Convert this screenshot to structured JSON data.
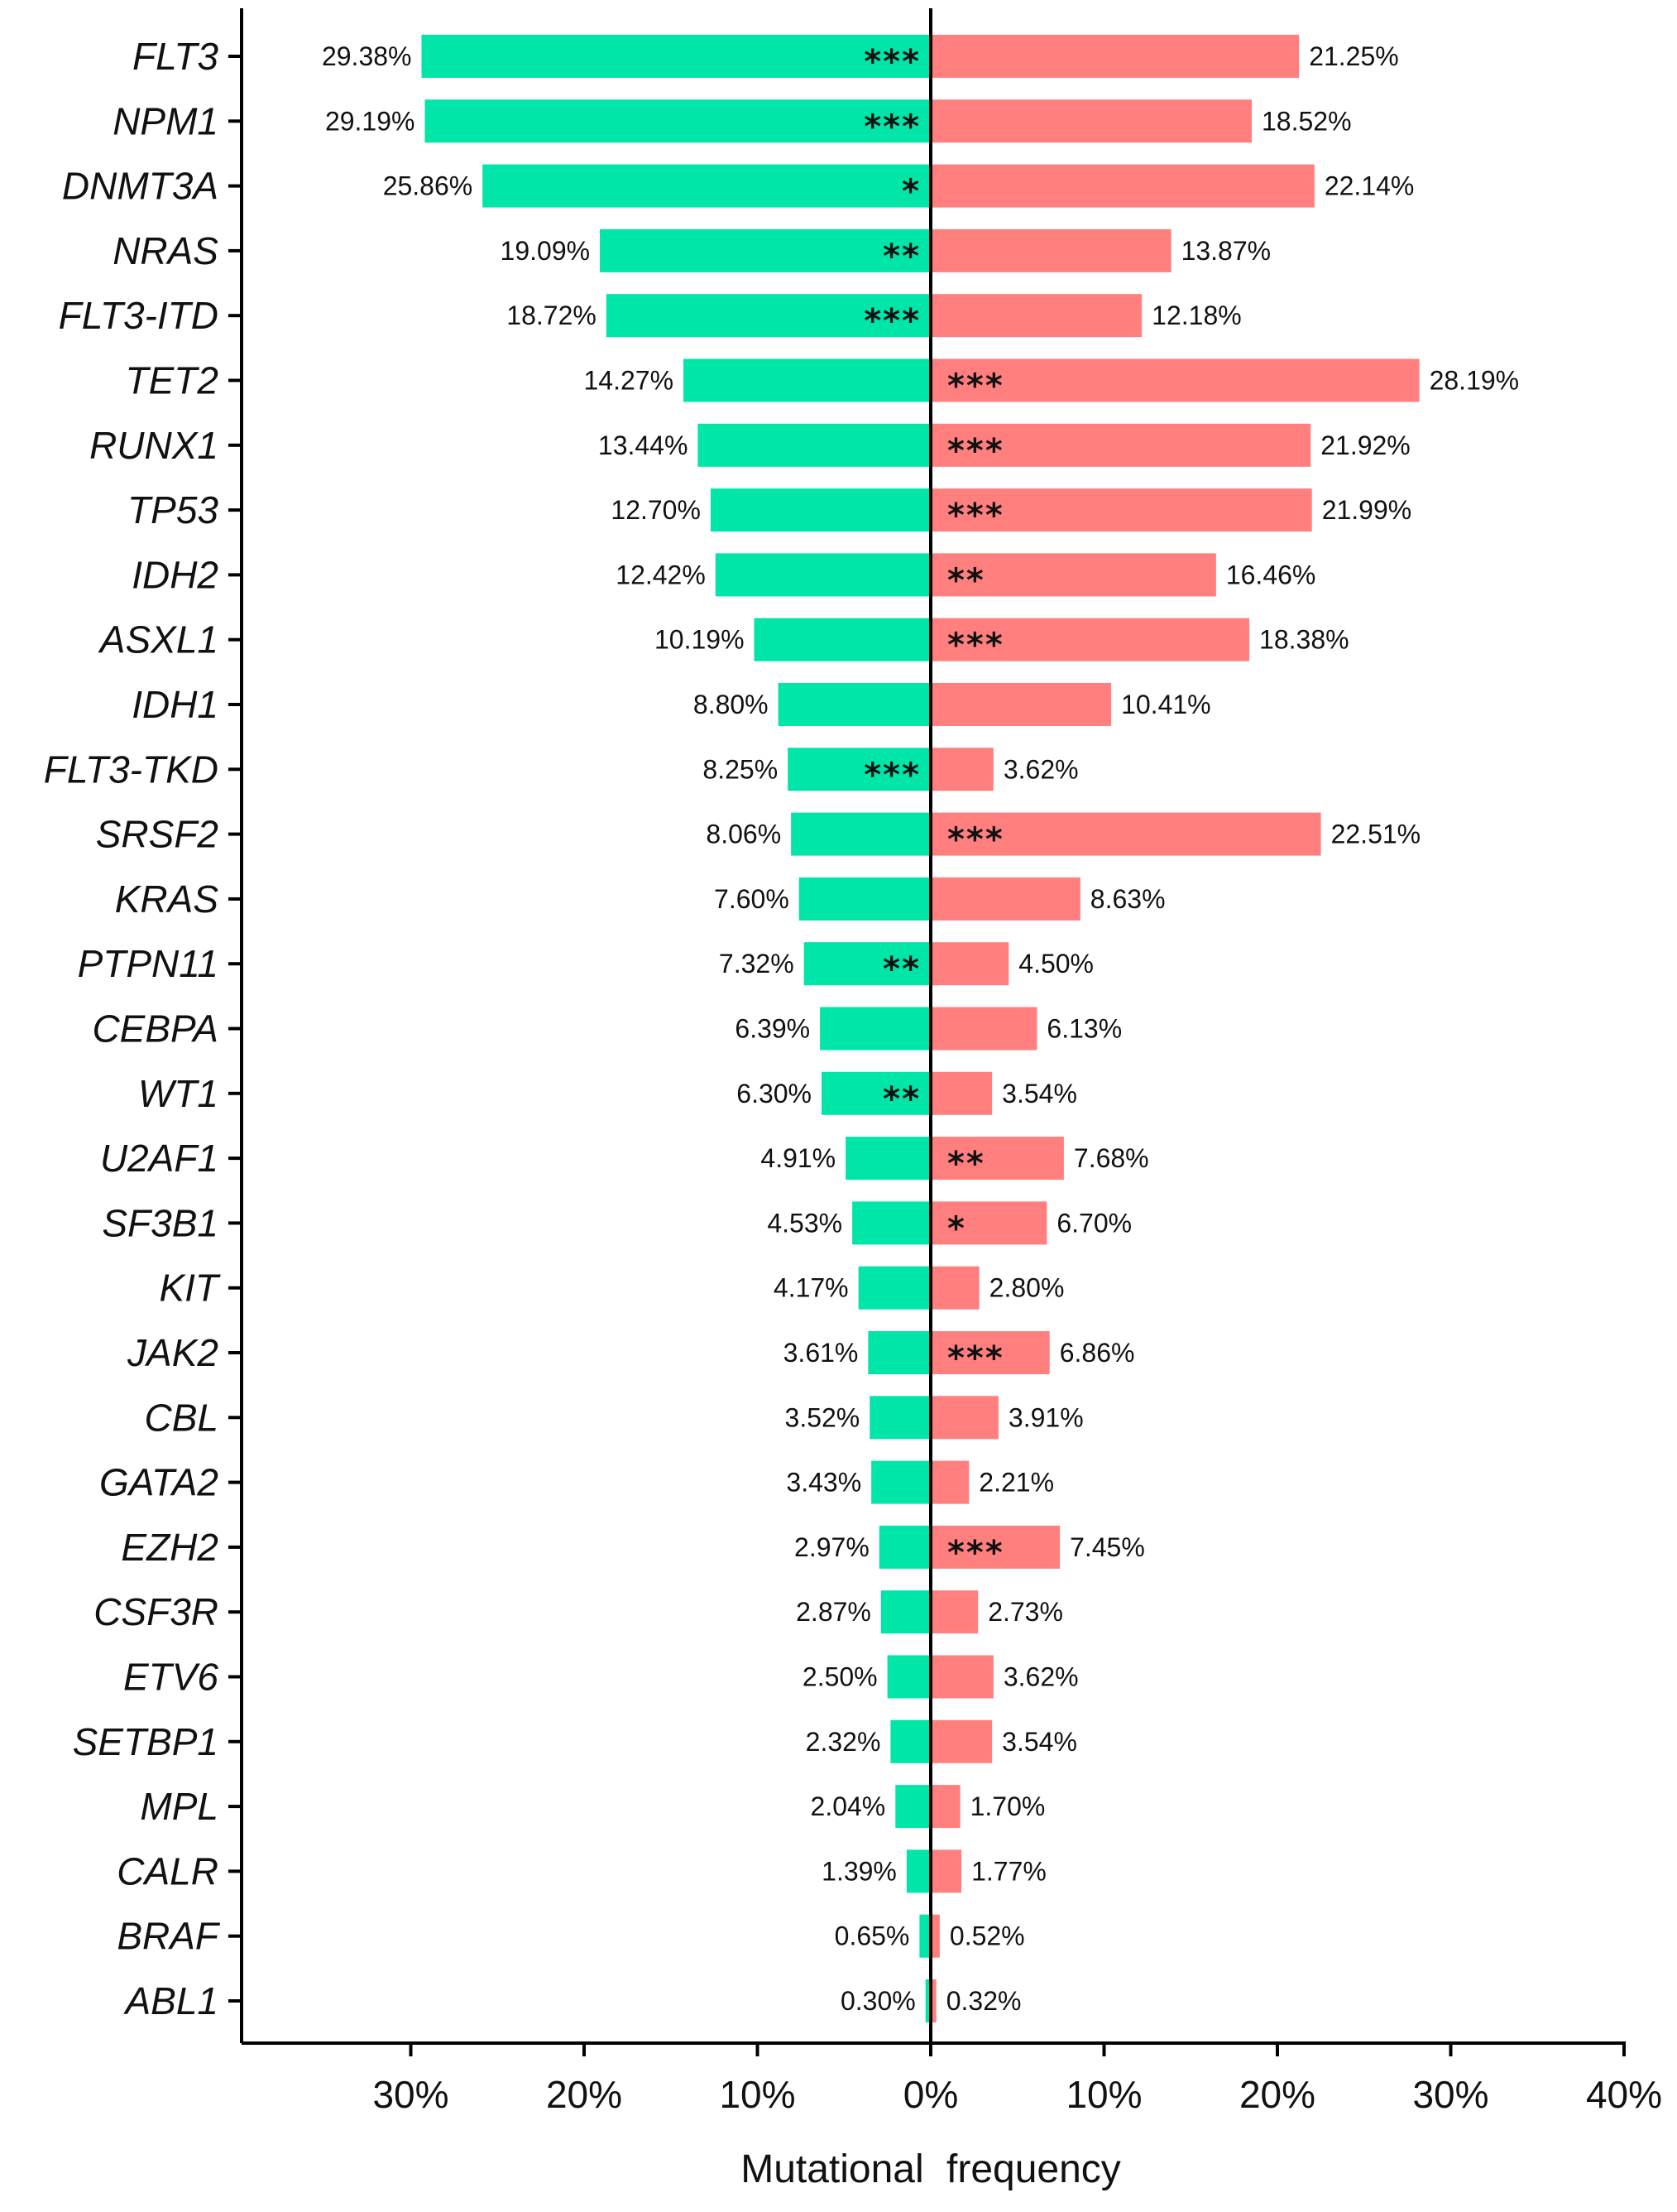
{
  "chart_data": {
    "type": "bar",
    "orientation": "horizontal-diverging",
    "xlabel": "Mutational frequency",
    "x_range": [
      -40,
      40
    ],
    "x_ticks": [
      {
        "value": -30,
        "label": "30%"
      },
      {
        "value": -20,
        "label": "20%"
      },
      {
        "value": -10,
        "label": "10%"
      },
      {
        "value": 0,
        "label": "0%"
      },
      {
        "value": 10,
        "label": "10%"
      },
      {
        "value": 20,
        "label": "20%"
      },
      {
        "value": 30,
        "label": "30%"
      },
      {
        "value": 40,
        "label": "40%"
      }
    ],
    "colors": {
      "left": "#00e5a8",
      "right": "#ff7f7f",
      "axis": "#000000"
    },
    "categories": [
      "FLT3",
      "NPM1",
      "DNMT3A",
      "NRAS",
      "FLT3-ITD",
      "TET2",
      "RUNX1",
      "TP53",
      "IDH2",
      "ASXL1",
      "IDH1",
      "FLT3-TKD",
      "SRSF2",
      "KRAS",
      "PTPN11",
      "CEBPA",
      "WT1",
      "U2AF1",
      "SF3B1",
      "KIT",
      "JAK2",
      "CBL",
      "GATA2",
      "EZH2",
      "CSF3R",
      "ETV6",
      "SETBP1",
      "MPL",
      "CALR",
      "BRAF",
      "ABL1"
    ],
    "series": [
      {
        "name": "left",
        "values": [
          29.38,
          29.19,
          25.86,
          19.09,
          18.72,
          14.27,
          13.44,
          12.7,
          12.42,
          10.19,
          8.8,
          8.25,
          8.06,
          7.6,
          7.32,
          6.39,
          6.3,
          4.91,
          4.53,
          4.17,
          3.61,
          3.52,
          3.43,
          2.97,
          2.87,
          2.5,
          2.32,
          2.04,
          1.39,
          0.65,
          0.3
        ],
        "labels": [
          "29.38%",
          "29.19%",
          "25.86%",
          "19.09%",
          "18.72%",
          "14.27%",
          "13.44%",
          "12.70%",
          "12.42%",
          "10.19%",
          "8.80%",
          "8.25%",
          "8.06%",
          "7.60%",
          "7.32%",
          "6.39%",
          "6.30%",
          "4.91%",
          "4.53%",
          "4.17%",
          "3.61%",
          "3.52%",
          "3.43%",
          "2.97%",
          "2.87%",
          "2.50%",
          "2.32%",
          "2.04%",
          "1.39%",
          "0.65%",
          "0.30%"
        ],
        "significance": [
          "***",
          "***",
          "*",
          "**",
          "***",
          "",
          "",
          "",
          "",
          "",
          "",
          "***",
          "",
          "",
          "**",
          "",
          "**",
          "",
          "",
          "",
          "",
          "",
          "",
          "",
          "",
          "",
          "",
          "",
          "",
          "",
          ""
        ]
      },
      {
        "name": "right",
        "values": [
          21.25,
          18.52,
          22.14,
          13.87,
          12.18,
          28.19,
          21.92,
          21.99,
          16.46,
          18.38,
          10.41,
          3.62,
          22.51,
          8.63,
          4.5,
          6.13,
          3.54,
          7.68,
          6.7,
          2.8,
          6.86,
          3.91,
          2.21,
          7.45,
          2.73,
          3.62,
          3.54,
          1.7,
          1.77,
          0.52,
          0.32
        ],
        "labels": [
          "21.25%",
          "18.52%",
          "22.14%",
          "13.87%",
          "12.18%",
          "28.19%",
          "21.92%",
          "21.99%",
          "16.46%",
          "18.38%",
          "10.41%",
          "3.62%",
          "22.51%",
          "8.63%",
          "4.50%",
          "6.13%",
          "3.54%",
          "7.68%",
          "6.70%",
          "2.80%",
          "6.86%",
          "3.91%",
          "2.21%",
          "7.45%",
          "2.73%",
          "3.62%",
          "3.54%",
          "1.70%",
          "1.77%",
          "0.52%",
          "0.32%"
        ],
        "significance": [
          "",
          "",
          "",
          "",
          "",
          "***",
          "***",
          "***",
          "**",
          "***",
          "",
          "",
          "***",
          "",
          "",
          "",
          "",
          "**",
          "*",
          "",
          "***",
          "",
          "",
          "***",
          "",
          "",
          "",
          "",
          "",
          "",
          ""
        ]
      }
    ]
  }
}
